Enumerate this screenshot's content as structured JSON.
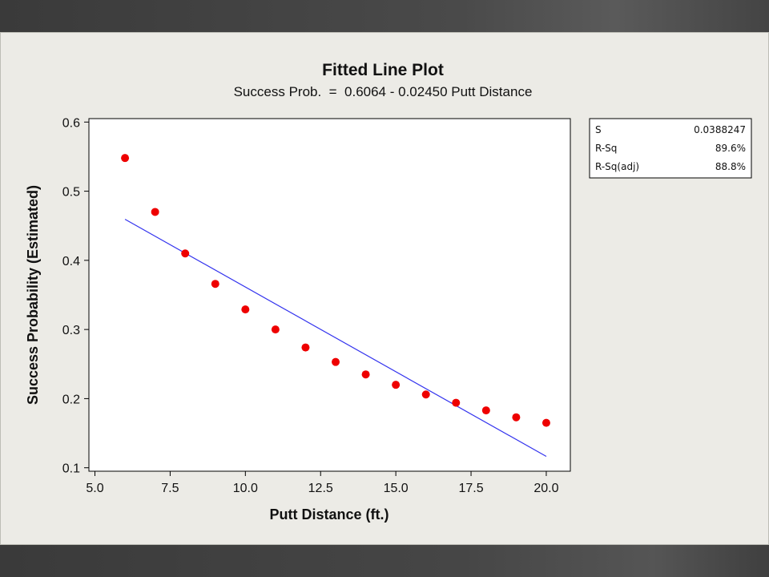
{
  "chart_data": {
    "type": "scatter",
    "title": "Fitted Line Plot",
    "subtitle": "Success Prob.  =  0.6064 - 0.02450 Putt Distance",
    "xlabel": "Putt Distance (ft.)",
    "ylabel": "Success Probability (Estimated)",
    "xlim": [
      4.8,
      20.8
    ],
    "ylim": [
      0.095,
      0.605
    ],
    "xticks": [
      5.0,
      7.5,
      10.0,
      12.5,
      15.0,
      17.5,
      20.0
    ],
    "xtick_labels": [
      "5.0",
      "7.5",
      "10.0",
      "12.5",
      "15.0",
      "17.5",
      "20.0"
    ],
    "yticks": [
      0.1,
      0.2,
      0.3,
      0.4,
      0.5,
      0.6
    ],
    "ytick_labels": [
      "0.1",
      "0.2",
      "0.3",
      "0.4",
      "0.5",
      "0.6"
    ],
    "grid": false,
    "series": [
      {
        "type": "scatter",
        "color": "#ee0000",
        "x": [
          6,
          7,
          8,
          9,
          10,
          11,
          12,
          13,
          14,
          15,
          16,
          17,
          18,
          19,
          20
        ],
        "y": [
          0.548,
          0.47,
          0.41,
          0.366,
          0.329,
          0.3,
          0.274,
          0.253,
          0.235,
          0.22,
          0.206,
          0.194,
          0.183,
          0.173,
          0.165
        ]
      },
      {
        "type": "line",
        "color": "#3333ee",
        "intercept": 0.6064,
        "slope": -0.0245,
        "x_range": [
          6,
          20
        ]
      }
    ],
    "stats": [
      {
        "name": "S",
        "value": "0.0388247"
      },
      {
        "name": "R-Sq",
        "value": "89.6%"
      },
      {
        "name": "R-Sq(adj)",
        "value": "88.8%"
      }
    ]
  }
}
